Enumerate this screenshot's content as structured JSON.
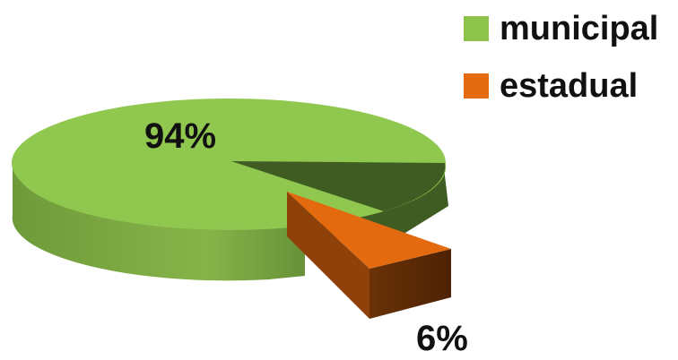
{
  "chart_data": {
    "type": "pie",
    "title": "",
    "categories": [
      "municipal",
      "estadual"
    ],
    "values": [
      94,
      6
    ],
    "data_labels": [
      "94%",
      "6%"
    ],
    "colors": [
      "#8dc34a",
      "#e46a10"
    ],
    "style": "3d-exploded",
    "legend_position": "top-right"
  }
}
